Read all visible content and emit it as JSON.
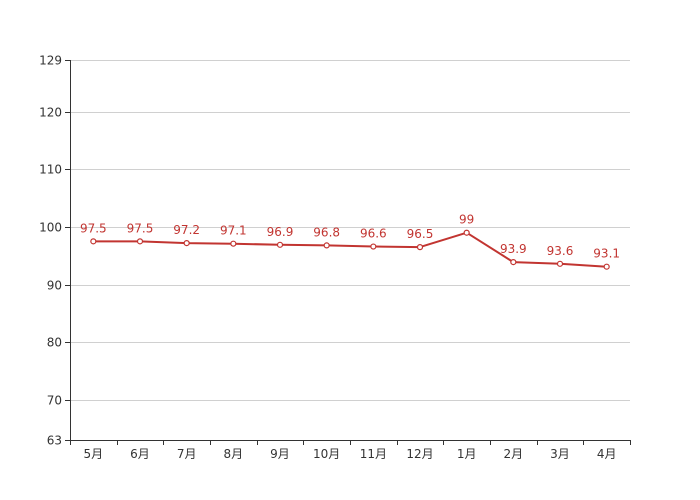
{
  "chart_data": {
    "type": "line",
    "categories": [
      "5月",
      "6月",
      "7月",
      "8月",
      "9月",
      "10月",
      "11月",
      "12月",
      "1月",
      "2月",
      "3月",
      "4月"
    ],
    "series": [
      {
        "values": [
          97.5,
          97.5,
          97.2,
          97.1,
          96.9,
          96.8,
          96.6,
          96.5,
          99,
          93.9,
          93.6,
          93.1
        ],
        "color": "#c23531"
      }
    ],
    "yticks": [
      63,
      70,
      80,
      90,
      100,
      110,
      120,
      129
    ],
    "ylim": [
      63,
      129
    ],
    "grid": true,
    "legend": "none"
  }
}
